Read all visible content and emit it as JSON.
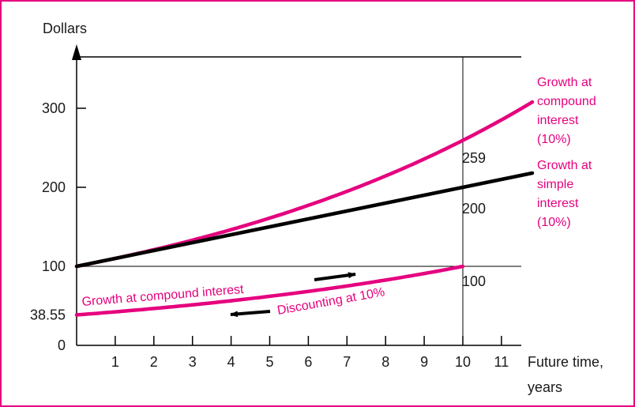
{
  "chart_data": {
    "type": "line",
    "ylabel": "Dollars",
    "xlabel_lines": [
      "Future time,",
      "years"
    ],
    "xlim": [
      0,
      12
    ],
    "ylim": [
      0,
      360
    ],
    "x_ticks": [
      1,
      2,
      3,
      4,
      5,
      6,
      7,
      8,
      9,
      10,
      11
    ],
    "y_ticks": [
      {
        "value": 0,
        "label": "0"
      },
      {
        "value": 38.55,
        "label": "38.55"
      },
      {
        "value": 100,
        "label": "100"
      },
      {
        "value": 200,
        "label": "200"
      },
      {
        "value": 300,
        "label": "300"
      }
    ],
    "reference_lines": {
      "horizontal_y": 100,
      "vertical_x": 10
    },
    "series": [
      {
        "label_lines": [
          "Growth at",
          "compound",
          "interest",
          "(10%)"
        ],
        "color": "#e5007e",
        "formula": "100*1.1^x",
        "x_range": [
          0,
          11.8
        ]
      },
      {
        "label_lines": [
          "Growth at",
          "simple",
          "interest",
          "(10%)"
        ],
        "color": "#000000",
        "formula": "100+10*x",
        "x_range": [
          0,
          11.8
        ]
      },
      {
        "color": "#e5007e",
        "formula": "38.55*1.1^x",
        "x_range": [
          0,
          10
        ]
      }
    ],
    "value_labels": [
      {
        "text": "259",
        "x": 10,
        "y": 259
      },
      {
        "text": "200",
        "x": 10,
        "y": 200
      },
      {
        "text": "100",
        "x": 10,
        "y": 100
      }
    ],
    "annotations": [
      {
        "text": "Growth at compound interest",
        "arrow": "right"
      },
      {
        "text": "Discounting at 10%",
        "arrow": "left"
      }
    ]
  }
}
